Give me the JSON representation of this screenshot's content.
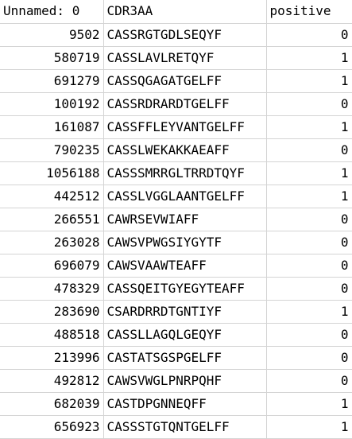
{
  "sheet": {
    "headers": [
      "Unnamed: 0",
      "CDR3AA",
      "positive"
    ],
    "rows": [
      [
        "9502",
        "CASSRGTGDLSEQYF",
        "0"
      ],
      [
        "580719",
        "CASSLAVLRETQYF",
        "1"
      ],
      [
        "691279",
        "CASSQGAGATGELFF",
        "1"
      ],
      [
        "100192",
        "CASSRDRARDTGELFF",
        "0"
      ],
      [
        "161087",
        "CASSFFLEYVANTGELFF",
        "1"
      ],
      [
        "790235",
        "CASSLWEKAKKAEAFF",
        "0"
      ],
      [
        "1056188",
        "CASSSMRRGLTRRDTQYF",
        "1"
      ],
      [
        "442512",
        "CASSLVGGLAANTGELFF",
        "1"
      ],
      [
        "266551",
        "CAWRSEVWIAFF",
        "0"
      ],
      [
        "263028",
        "CAWSVPWGSIYGYTF",
        "0"
      ],
      [
        "696079",
        "CAWSVAAWTEAFF",
        "0"
      ],
      [
        "478329",
        "CASSQEITGYEGYTEAFF",
        "0"
      ],
      [
        "283690",
        "CSARDRRDTGNTIYF",
        "1"
      ],
      [
        "488518",
        "CASSLLAGQLGEQYF",
        "0"
      ],
      [
        "213996",
        "CASTATSGSPGELFF",
        "0"
      ],
      [
        "492812",
        "CAWSVWGLPNRPQHF",
        "0"
      ],
      [
        "682039",
        "CASTDPGNNEQFF",
        "1"
      ],
      [
        "656923",
        "CASSSTGTQNTGELFF",
        "1"
      ]
    ]
  }
}
